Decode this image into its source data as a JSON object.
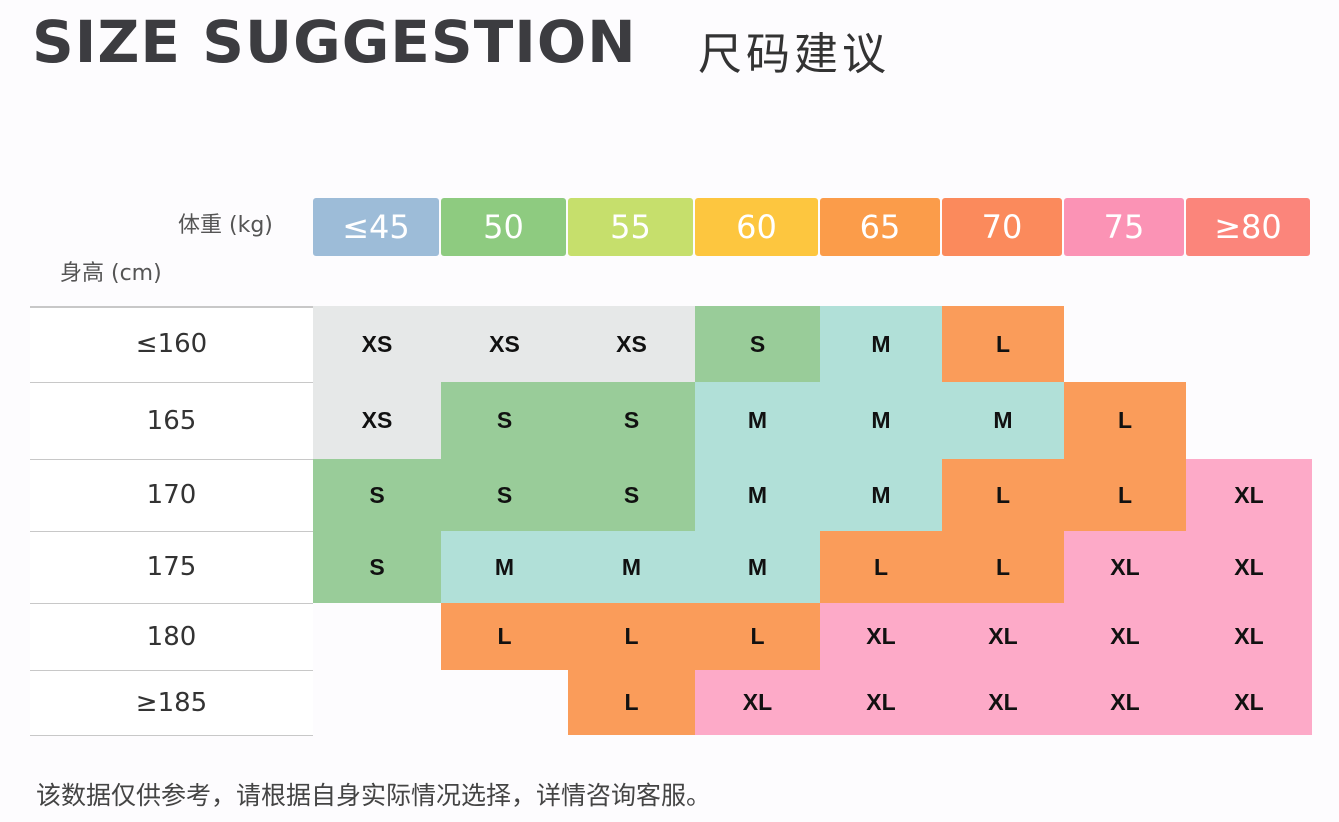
{
  "title": "SIZE SUGGESTION",
  "title_cn": "尺码建议",
  "weight_label": "体重 (kg)",
  "height_label": "身高 (cm)",
  "weights": [
    "≤45",
    "50",
    "55",
    "60",
    "65",
    "70",
    "75",
    "≥80"
  ],
  "weight_colors": [
    "#9dbcd8",
    "#8ecb80",
    "#c6df6c",
    "#fdc63f",
    "#fb9c4a",
    "#fb8a5c",
    "#fb93b5",
    "#fb857b"
  ],
  "size_colors": {
    "XS": "#e6e8e8",
    "S": "#99cc99",
    "M": "#b1e0d8",
    "L": "#fa9c5a",
    "XL": "#fdaac8"
  },
  "rows": [
    {
      "height": "≤160",
      "cells": [
        "XS",
        "XS",
        "XS",
        "S",
        "M",
        "L",
        "",
        ""
      ]
    },
    {
      "height": "165",
      "cells": [
        "XS",
        "S",
        "S",
        "M",
        "M",
        "M",
        "L",
        ""
      ]
    },
    {
      "height": "170",
      "cells": [
        "S",
        "S",
        "S",
        "M",
        "M",
        "L",
        "L",
        "XL"
      ]
    },
    {
      "height": "175",
      "cells": [
        "S",
        "M",
        "M",
        "M",
        "L",
        "L",
        "XL",
        "XL"
      ]
    },
    {
      "height": "180",
      "cells": [
        "",
        "L",
        "L",
        "L",
        "XL",
        "XL",
        "XL",
        "XL"
      ]
    },
    {
      "height": "≥185",
      "cells": [
        "",
        "",
        "L",
        "XL",
        "XL",
        "XL",
        "XL",
        "XL"
      ]
    }
  ],
  "note": "该数据仅供参考，请根据自身实际情况选择，详情咨询客服。"
}
